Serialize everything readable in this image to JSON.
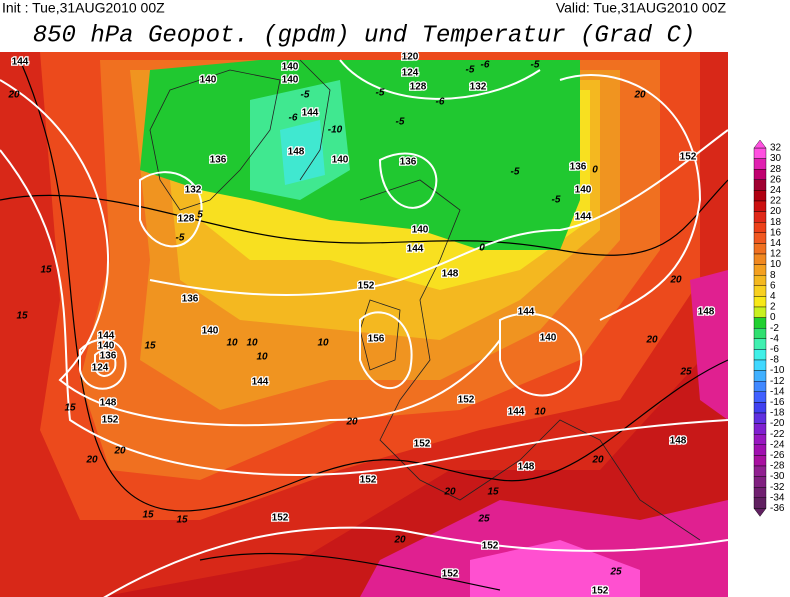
{
  "header": {
    "init": "Init : Tue,31AUG2010 00Z",
    "valid": "Valid: Tue,31AUG2010 00Z",
    "title": "850 hPa Geopot. (gpdm) und Temperatur (Grad C)"
  },
  "colorbar": {
    "levels": [
      32,
      30,
      28,
      26,
      24,
      22,
      20,
      18,
      16,
      14,
      12,
      10,
      8,
      6,
      4,
      2,
      0,
      -2,
      -4,
      -6,
      -8,
      -10,
      -12,
      -14,
      -16,
      -18,
      -20,
      -22,
      -24,
      -26,
      -28,
      -30,
      -32,
      -34,
      -36
    ],
    "colors": [
      "#ff50e0",
      "#e020b0",
      "#c00070",
      "#a00030",
      "#b00010",
      "#cc1010",
      "#e02818",
      "#ec4018",
      "#f05820",
      "#f07020",
      "#f08820",
      "#f4a020",
      "#f4b820",
      "#f8d020",
      "#f8e818",
      "#c8f020",
      "#20d030",
      "#30e070",
      "#40f0b0",
      "#40f0e8",
      "#40d8ff",
      "#40b0ff",
      "#4088ff",
      "#4060ff",
      "#4040f0",
      "#6030e0",
      "#8020d0",
      "#9818c0",
      "#a010b0",
      "#a810a0",
      "#902090",
      "#802080",
      "#702070",
      "#602060"
    ]
  },
  "contour_labels": [
    144,
    20,
    140,
    140,
    140,
    120,
    124,
    128,
    132,
    -5,
    -6,
    -6,
    -5,
    -5,
    -5,
    -6,
    144,
    -10,
    -5,
    148,
    140,
    136,
    -5,
    136,
    0,
    20,
    152,
    136,
    132,
    128,
    5,
    -5,
    136,
    15,
    15,
    140,
    10,
    10,
    10,
    10,
    152,
    156,
    148,
    144,
    140,
    140,
    144,
    -5,
    0,
    144,
    140,
    144,
    140,
    136,
    124,
    15,
    144,
    148,
    152,
    15,
    144,
    152,
    152,
    148,
    10,
    20,
    20,
    20,
    15,
    15,
    152,
    20,
    15,
    152,
    25,
    20,
    152,
    25,
    148,
    20,
    20,
    25,
    148,
    20,
    152,
    152
  ]
}
